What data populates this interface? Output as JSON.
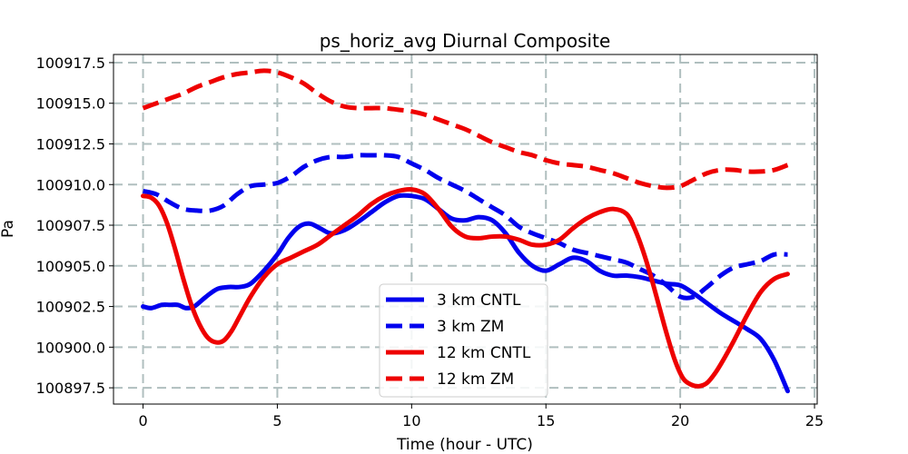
{
  "chart_data": {
    "type": "line",
    "title": "ps_horiz_avg Diurnal Composite",
    "xlabel": "Time (hour - UTC)",
    "ylabel": "Pa",
    "xlim": [
      -1.1,
      25.1
    ],
    "ylim": [
      100896.5,
      100918.0
    ],
    "xticks": [
      0,
      5,
      10,
      15,
      20,
      25
    ],
    "xtick_labels": [
      "0",
      "5",
      "10",
      "15",
      "20",
      "25"
    ],
    "yticks": [
      100897.5,
      100900.0,
      100902.5,
      100905.0,
      100907.5,
      100910.0,
      100912.5,
      100915.0,
      100917.5
    ],
    "ytick_labels": [
      "100897.5",
      "100900.0",
      "100902.5",
      "100905.0",
      "100907.5",
      "100910.0",
      "100912.5",
      "100915.0",
      "100917.5"
    ],
    "grid": true,
    "legend_position": "bottom-center",
    "series": [
      {
        "name": "3 km CNTL",
        "color": "#0000ee",
        "dash": "solid",
        "x": [
          0,
          0.3,
          0.7,
          1,
          1.3,
          1.6,
          1.9,
          2.2,
          2.5,
          2.8,
          3.2,
          3.6,
          4,
          4.5,
          5,
          5.4,
          5.8,
          6.2,
          6.6,
          7,
          7.5,
          8,
          8.5,
          9,
          9.5,
          10,
          10.5,
          11,
          11.5,
          12,
          12.5,
          13,
          13.5,
          14,
          14.5,
          15,
          15.5,
          16,
          16.5,
          17,
          17.5,
          18,
          18.5,
          19,
          19.5,
          20,
          20.5,
          21,
          21.5,
          22,
          22.5,
          23,
          23.5,
          24
        ],
        "y": [
          100902.5,
          100902.4,
          100902.6,
          100902.6,
          100902.6,
          100902.4,
          100902.5,
          100902.9,
          100903.3,
          100903.6,
          100903.7,
          100903.7,
          100903.9,
          100904.7,
          100905.7,
          100906.7,
          100907.4,
          100907.6,
          100907.3,
          100907.0,
          100907.2,
          100907.7,
          100908.3,
          100908.9,
          100909.3,
          100909.3,
          100909.1,
          100908.5,
          100907.9,
          100907.8,
          100908.0,
          100907.8,
          100907.0,
          100905.8,
          100905.0,
          100904.7,
          100905.1,
          100905.5,
          100905.3,
          100904.7,
          100904.4,
          100904.4,
          100904.3,
          100904.1,
          100903.9,
          100903.8,
          100903.3,
          100902.7,
          100902.1,
          100901.6,
          100901.1,
          100900.5,
          100899.2,
          100897.3
        ]
      },
      {
        "name": "3 km ZM",
        "color": "#0000ee",
        "dash": "dashed",
        "x": [
          0,
          0.5,
          1,
          1.5,
          2,
          2.5,
          3,
          3.5,
          4,
          4.5,
          5,
          5.5,
          6,
          6.5,
          7,
          7.5,
          8,
          8.5,
          9,
          9.5,
          10,
          10.5,
          11,
          11.5,
          12,
          12.5,
          13,
          13.5,
          14,
          14.5,
          15,
          15.5,
          16,
          16.5,
          17,
          17.5,
          18,
          18.5,
          19,
          19.5,
          20,
          20.5,
          21,
          21.5,
          22,
          22.5,
          23,
          23.5,
          24
        ],
        "y": [
          100909.6,
          100909.4,
          100908.9,
          100908.5,
          100908.4,
          100908.4,
          100908.7,
          100909.4,
          100909.9,
          100910.0,
          100910.1,
          100910.5,
          100911.1,
          100911.5,
          100911.7,
          100911.7,
          100911.8,
          100911.8,
          100911.8,
          100911.7,
          100911.3,
          100910.9,
          100910.4,
          100910.0,
          100909.6,
          100909.1,
          100908.6,
          100908.1,
          100907.4,
          100907.0,
          100906.7,
          100906.4,
          100906.0,
          100905.8,
          100905.6,
          100905.4,
          100905.2,
          100904.8,
          100904.4,
          100903.8,
          100903.1,
          100903.1,
          100903.7,
          100904.4,
          100904.9,
          100905.1,
          100905.3,
          100905.7,
          100905.7
        ]
      },
      {
        "name": "12 km CNTL",
        "color": "#ee0000",
        "dash": "solid",
        "x": [
          0,
          0.3,
          0.6,
          0.9,
          1.2,
          1.5,
          1.8,
          2.1,
          2.4,
          2.7,
          3,
          3.3,
          3.6,
          4,
          4.5,
          5,
          5.5,
          6,
          6.5,
          7,
          7.5,
          8,
          8.5,
          9,
          9.5,
          10,
          10.5,
          11,
          11.5,
          12,
          12.5,
          13,
          13.5,
          14,
          14.5,
          15,
          15.5,
          16,
          16.5,
          17,
          17.5,
          18,
          18.3,
          18.6,
          18.9,
          19.2,
          19.5,
          19.8,
          20.1,
          20.4,
          20.7,
          21,
          21.3,
          21.6,
          22,
          22.5,
          23,
          23.5,
          24
        ],
        "y": [
          100909.3,
          100909.2,
          100908.7,
          100907.6,
          100906.0,
          100904.2,
          100902.6,
          100901.4,
          100900.6,
          100900.3,
          100900.4,
          100901.0,
          100901.9,
          100903.1,
          100904.3,
          100905.1,
          100905.5,
          100905.9,
          100906.3,
          100906.9,
          100907.5,
          100908.1,
          100908.8,
          100909.3,
          100909.6,
          100909.7,
          100909.4,
          100908.5,
          100907.4,
          100906.8,
          100906.7,
          100906.8,
          100906.8,
          100906.6,
          100906.3,
          100906.3,
          100906.6,
          100907.3,
          100907.9,
          100908.3,
          100908.5,
          100908.2,
          100907.3,
          100906.0,
          100904.4,
          100902.6,
          100900.8,
          100899.2,
          100898.1,
          100897.7,
          100897.6,
          100897.8,
          100898.4,
          100899.2,
          100900.4,
          100902.0,
          100903.4,
          100904.2,
          100904.5
        ]
      },
      {
        "name": "12 km ZM",
        "color": "#ee0000",
        "dash": "dashed",
        "x": [
          0,
          0.5,
          1,
          1.5,
          2,
          2.5,
          3,
          3.5,
          4,
          4.5,
          5,
          5.5,
          6,
          6.5,
          7,
          7.5,
          8,
          8.5,
          9,
          9.5,
          10,
          10.5,
          11,
          11.5,
          12,
          12.5,
          13,
          13.5,
          14,
          14.5,
          15,
          15.5,
          16,
          16.5,
          17,
          17.5,
          18,
          18.5,
          19,
          19.5,
          20,
          20.5,
          21,
          21.5,
          22,
          22.5,
          23,
          23.5,
          24
        ],
        "y": [
          100914.7,
          100915.0,
          100915.3,
          100915.6,
          100916.0,
          100916.3,
          100916.6,
          100916.8,
          100916.9,
          100917.0,
          100916.9,
          100916.6,
          100916.2,
          100915.6,
          100915.1,
          100914.8,
          100914.7,
          100914.7,
          100914.7,
          100914.6,
          100914.5,
          100914.3,
          100914.0,
          100913.7,
          100913.4,
          100913.0,
          100912.6,
          100912.3,
          100912.0,
          100911.8,
          100911.5,
          100911.3,
          100911.2,
          100911.1,
          100910.9,
          100910.7,
          100910.4,
          100910.1,
          100909.9,
          100909.8,
          100909.9,
          100910.3,
          100910.7,
          100910.9,
          100910.9,
          100910.8,
          100910.8,
          100910.9,
          100911.2
        ]
      }
    ]
  }
}
